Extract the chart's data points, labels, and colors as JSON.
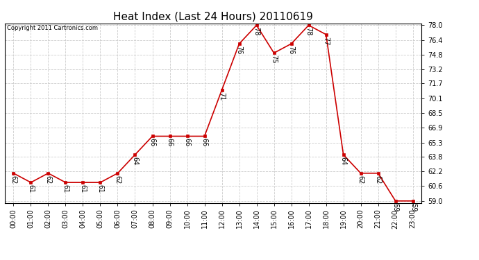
{
  "title": "Heat Index (Last 24 Hours) 20110619",
  "copyright": "Copyright 2011 Cartronics.com",
  "hours": [
    "00:00",
    "01:00",
    "02:00",
    "03:00",
    "04:00",
    "05:00",
    "06:00",
    "07:00",
    "08:00",
    "09:00",
    "10:00",
    "11:00",
    "12:00",
    "13:00",
    "14:00",
    "15:00",
    "16:00",
    "17:00",
    "18:00",
    "19:00",
    "20:00",
    "21:00",
    "22:00",
    "23:00"
  ],
  "values": [
    62,
    61,
    62,
    61,
    61,
    61,
    62,
    64,
    66,
    66,
    66,
    66,
    71,
    76,
    78,
    75,
    76,
    78,
    77,
    64,
    62,
    62,
    59,
    59
  ],
  "ylim_min": 59.0,
  "ylim_max": 78.0,
  "yticks": [
    59.0,
    60.6,
    62.2,
    63.8,
    65.3,
    66.9,
    68.5,
    70.1,
    71.7,
    73.2,
    74.8,
    76.4,
    78.0
  ],
  "line_color": "#cc0000",
  "marker_color": "#cc0000",
  "bg_color": "#ffffff",
  "grid_color": "#cccccc",
  "title_fontsize": 11,
  "copyright_fontsize": 6,
  "label_fontsize": 7,
  "annot_fontsize": 7
}
